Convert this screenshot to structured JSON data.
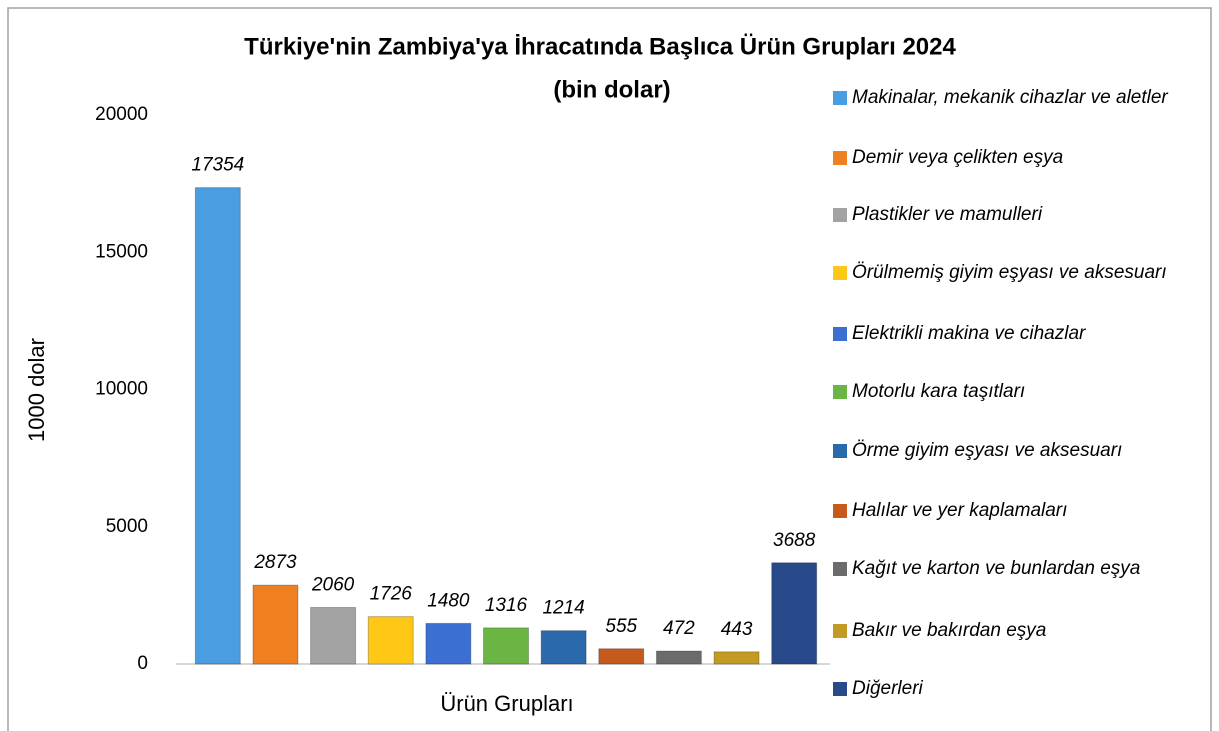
{
  "chart_data": {
    "type": "bar",
    "title": "Türkiye'nin Zambiya'ya İhracatında Başlıca Ürün Grupları 2024",
    "subtitle": "(bin dolar)",
    "x_label": "Ürün Grupları",
    "y_label": "1000 dolar",
    "categories": [
      "Makinalar, mekanik cihazlar ve aletler",
      "Demir veya çelikten eşya",
      "Plastikler ve mamulleri",
      "Örülmemiş giyim eşyası ve aksesuarı",
      "Elektrikli makina ve cihazlar",
      "Motorlu kara taşıtları",
      "Örme giyim eşyası ve aksesuarı",
      "Halılar ve yer kaplamaları",
      "Kağıt ve karton ve bunlardan eşya",
      "Bakır ve bakırdan eşya",
      "Diğerleri"
    ],
    "values": [
      17354,
      2873,
      2060,
      1726,
      1480,
      1316,
      1214,
      555,
      472,
      443,
      3688
    ],
    "colors": [
      "#4a9de0",
      "#f07f1f",
      "#a3a3a3",
      "#ffc816",
      "#3b6fd2",
      "#6ab544",
      "#2a6aac",
      "#c55a1c",
      "#6b6b6b",
      "#c49a22",
      "#284a8a"
    ],
    "ylim": [
      0,
      20000
    ],
    "yticks": [
      0,
      5000,
      10000,
      15000,
      20000
    ],
    "grid": false,
    "legend": "right"
  }
}
